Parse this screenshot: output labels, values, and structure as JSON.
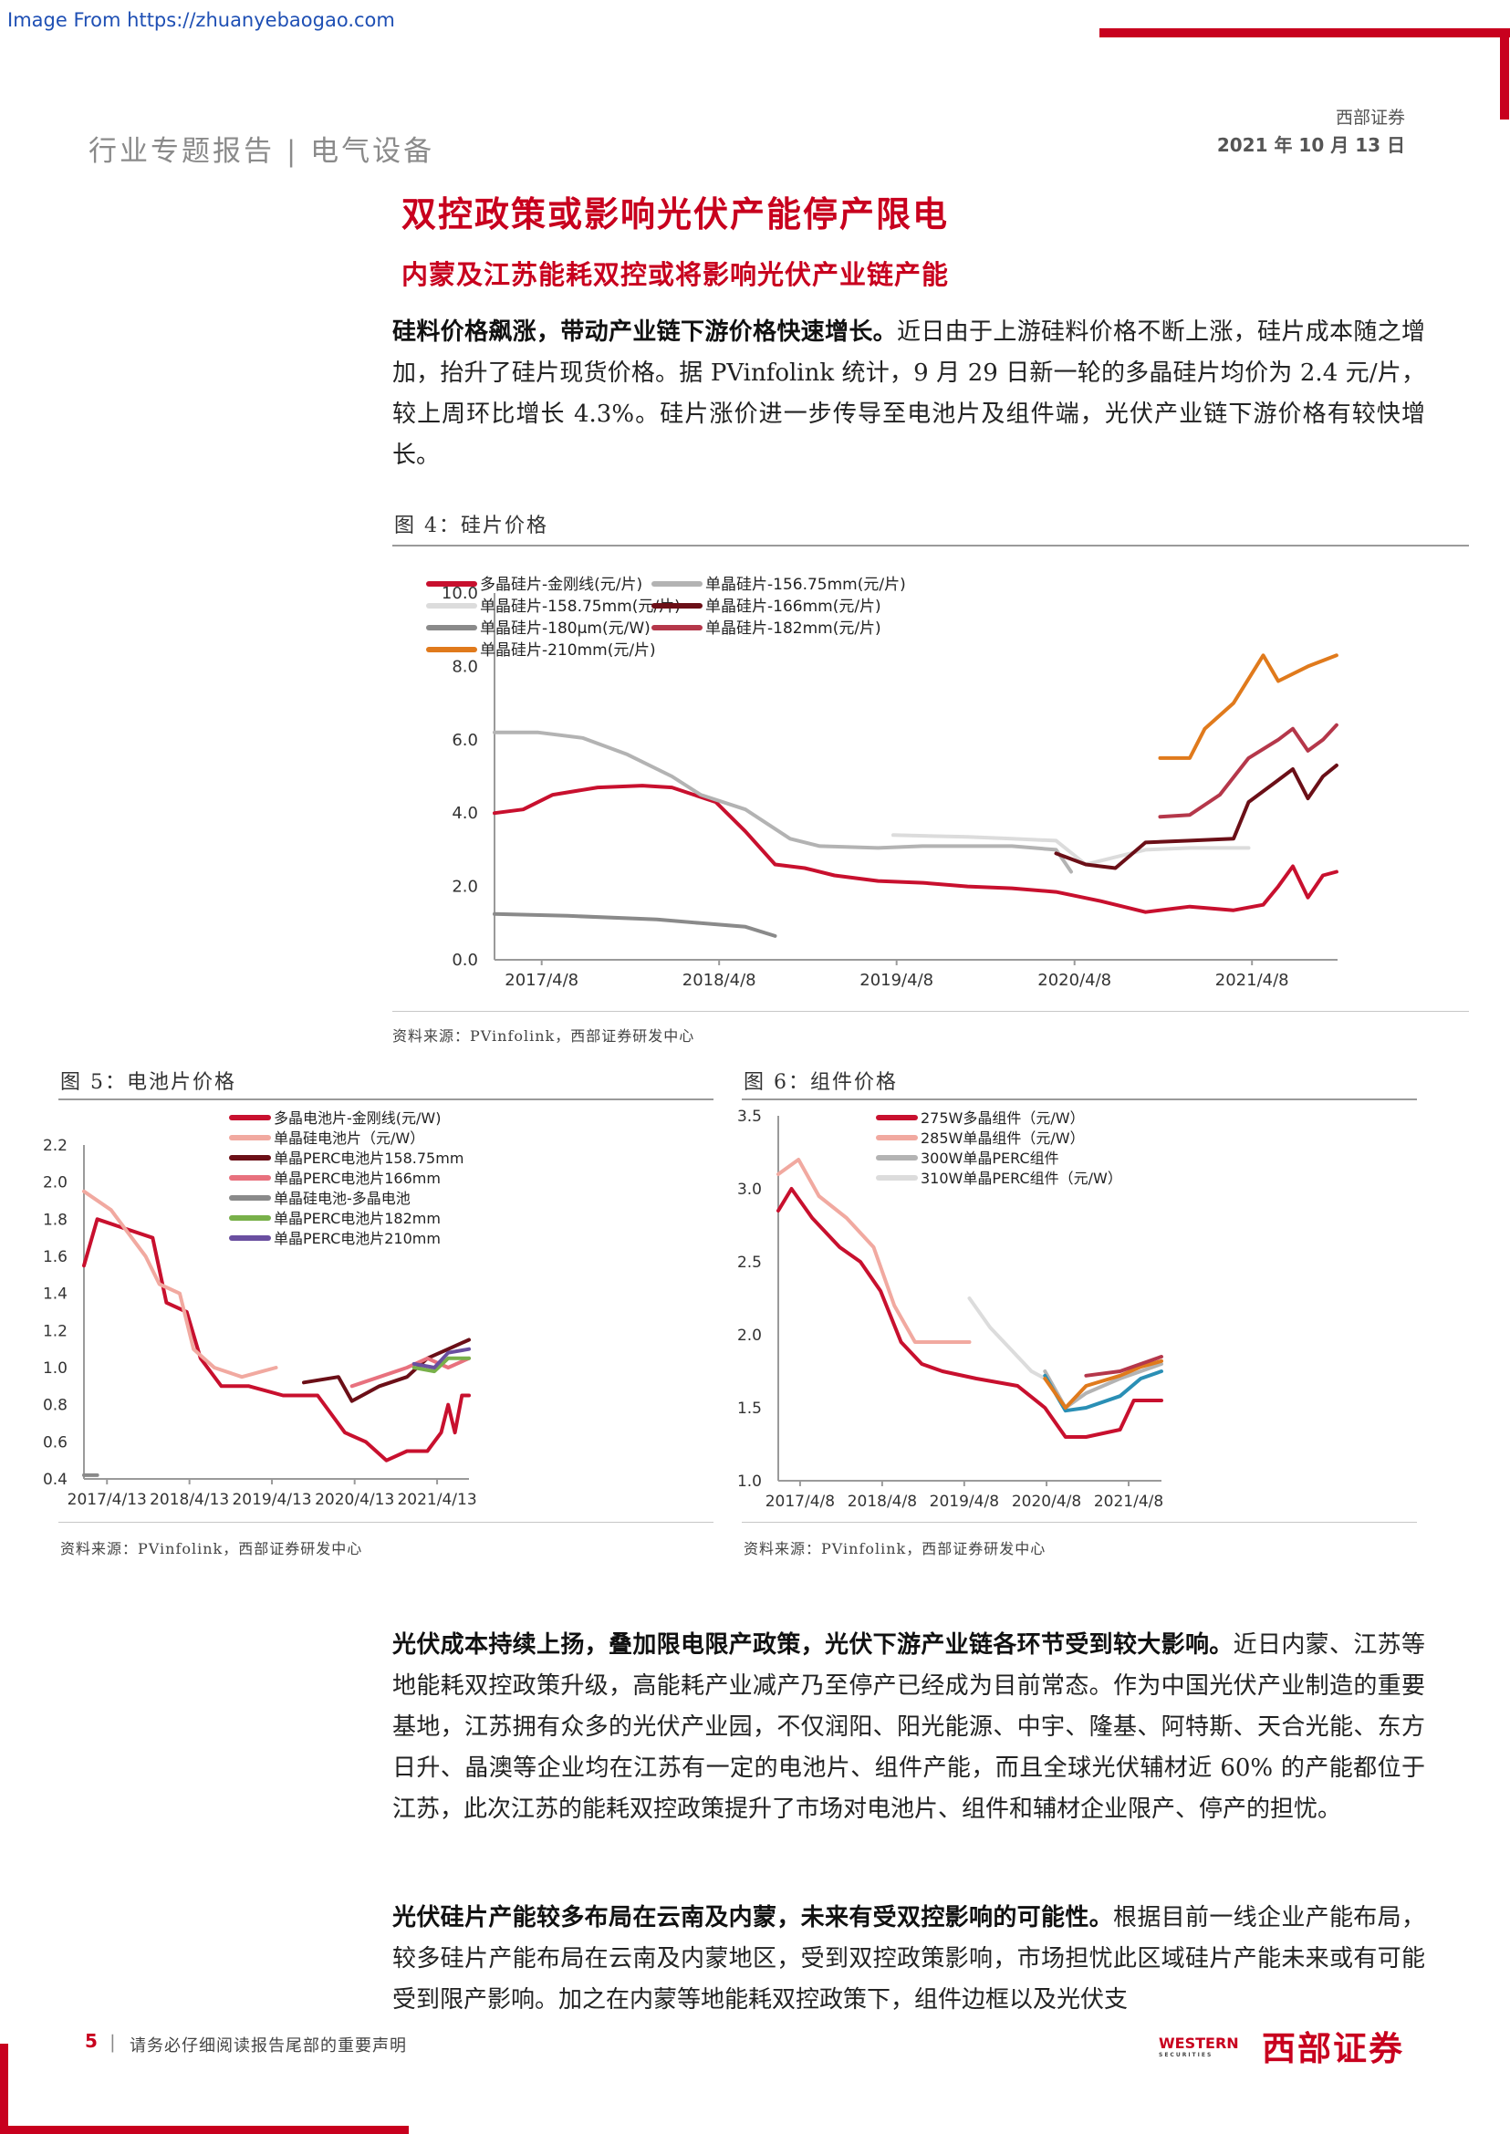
{
  "source_url": "Image From https://zhuanyebaogao.com",
  "header": {
    "title": "行业专题报告 | 电气设备",
    "company": "西部证券",
    "date": "2021 年 10 月 13 日"
  },
  "main_title": "双控政策或影响光伏产能停产限电",
  "sub_title": "内蒙及江苏能耗双控或将影响光伏产业链产能",
  "paragraph1": {
    "bold": "硅料价格飙涨，带动产业链下游价格快速增长。",
    "text": "近日由于上游硅料价格不断上涨，硅片成本随之增加，抬升了硅片现货价格。据 PVinfolink 统计，9 月 29 日新一轮的多晶硅片均价为 2.4 元/片，较上周环比增长 4.3%。硅片涨价进一步传导至电池片及组件端，光伏产业链下游价格有较快增长。"
  },
  "fig4": {
    "caption": "图 4：硅片价格",
    "source": "资料来源：PVinfolink，西部证券研发中心"
  },
  "fig5": {
    "caption": "图 5：电池片价格",
    "source": "资料来源：PVinfolink，西部证券研发中心"
  },
  "fig6": {
    "caption": "图 6：组件价格",
    "source": "资料来源：PVinfolink，西部证券研发中心"
  },
  "paragraph2": {
    "bold": "光伏成本持续上扬，叠加限电限产政策，光伏下游产业链各环节受到较大影响。",
    "text": "近日内蒙、江苏等地能耗双控政策升级，高能耗产业减产乃至停产已经成为目前常态。作为中国光伏产业制造的重要基地，江苏拥有众多的光伏产业园，不仅润阳、阳光能源、中宇、隆基、阿特斯、天合光能、东方日升、晶澳等企业均在江苏有一定的电池片、组件产能，而且全球光伏辅材近 60% 的产能都位于江苏，此次江苏的能耗双控政策提升了市场对电池片、组件和辅材企业限产、停产的担忧。"
  },
  "paragraph3": {
    "bold": "光伏硅片产能较多布局在云南及内蒙，未来有受双控影响的可能性。",
    "text": "根据目前一线企业产能布局，较多硅片产能布局在云南及内蒙地区，受到双控政策影响，市场担忧此区域硅片产能未来或有可能受到限产影响。加之在内蒙等地能耗双控政策下，组件边框以及光伏支"
  },
  "footer": {
    "page": "5",
    "separator": "|",
    "note": "请务必仔细阅读报告尾部的重要声明",
    "logo_en": "WESTERN",
    "logo_en_sub": "SECURITIES",
    "logo_cn": "西部证券"
  },
  "chart_data": [
    {
      "id": "fig4",
      "type": "line",
      "title": "图 4：硅片价格",
      "x_range": [
        "2017/1/1",
        "2021/10/1"
      ],
      "x_ticks": [
        "2017/4/8",
        "2018/4/8",
        "2019/4/8",
        "2020/4/8",
        "2021/4/8"
      ],
      "ylim": [
        0,
        10
      ],
      "y_ticks": [
        "0.0",
        "2.0",
        "4.0",
        "6.0",
        "8.0",
        "10.0"
      ],
      "grid": false,
      "legend": "top",
      "series": [
        {
          "name": "多晶硅片-金刚线(元/片)",
          "color": "#c8102e",
          "width": 4,
          "points": [
            [
              "2017/1/1",
              4.0
            ],
            [
              "2017/3/1",
              4.1
            ],
            [
              "2017/5/1",
              4.5
            ],
            [
              "2017/8/1",
              4.7
            ],
            [
              "2017/11/1",
              4.75
            ],
            [
              "2018/1/1",
              4.7
            ],
            [
              "2018/4/1",
              4.3
            ],
            [
              "2018/6/1",
              3.5
            ],
            [
              "2018/8/1",
              2.6
            ],
            [
              "2018/10/1",
              2.5
            ],
            [
              "2018/12/1",
              2.3
            ],
            [
              "2019/3/1",
              2.15
            ],
            [
              "2019/6/1",
              2.1
            ],
            [
              "2019/9/1",
              2.0
            ],
            [
              "2019/12/1",
              1.95
            ],
            [
              "2020/3/1",
              1.85
            ],
            [
              "2020/6/1",
              1.6
            ],
            [
              "2020/9/1",
              1.3
            ],
            [
              "2020/12/1",
              1.45
            ],
            [
              "2021/3/1",
              1.35
            ],
            [
              "2021/5/1",
              1.5
            ],
            [
              "2021/6/1",
              2.0
            ],
            [
              "2021/7/1",
              2.55
            ],
            [
              "2021/8/1",
              1.7
            ],
            [
              "2021/9/1",
              2.3
            ],
            [
              "2021/9/29",
              2.4
            ]
          ]
        },
        {
          "name": "单晶硅片-156.75mm(元/片)",
          "color": "#b3b3b3",
          "width": 4,
          "points": [
            [
              "2017/1/1",
              6.2
            ],
            [
              "2017/4/1",
              6.2
            ],
            [
              "2017/7/1",
              6.05
            ],
            [
              "2017/10/1",
              5.6
            ],
            [
              "2018/1/1",
              5.0
            ],
            [
              "2018/3/1",
              4.5
            ],
            [
              "2018/6/1",
              4.1
            ],
            [
              "2018/9/1",
              3.3
            ],
            [
              "2018/11/1",
              3.1
            ],
            [
              "2019/3/1",
              3.05
            ],
            [
              "2019/6/1",
              3.1
            ],
            [
              "2019/9/1",
              3.1
            ],
            [
              "2019/12/1",
              3.1
            ],
            [
              "2020/3/1",
              3.0
            ],
            [
              "2020/4/1",
              2.4
            ]
          ]
        },
        {
          "name": "单晶硅片-158.75mm(元/片)",
          "color": "#dcdcdc",
          "width": 4,
          "points": [
            [
              "2019/4/1",
              3.4
            ],
            [
              "2019/9/1",
              3.35
            ],
            [
              "2019/12/1",
              3.3
            ],
            [
              "2020/3/1",
              3.25
            ],
            [
              "2020/5/1",
              2.6
            ],
            [
              "2020/7/1",
              2.8
            ],
            [
              "2020/9/1",
              3.0
            ],
            [
              "2020/12/1",
              3.05
            ],
            [
              "2021/4/1",
              3.05
            ]
          ]
        },
        {
          "name": "单晶硅片-166mm(元/片)",
          "color": "#6b0f17",
          "width": 4,
          "points": [
            [
              "2020/3/1",
              2.9
            ],
            [
              "2020/5/1",
              2.6
            ],
            [
              "2020/7/1",
              2.5
            ],
            [
              "2020/9/1",
              3.2
            ],
            [
              "2020/12/1",
              3.25
            ],
            [
              "2021/3/1",
              3.3
            ],
            [
              "2021/4/1",
              4.3
            ],
            [
              "2021/6/1",
              4.9
            ],
            [
              "2021/7/1",
              5.2
            ],
            [
              "2021/8/1",
              4.4
            ],
            [
              "2021/9/1",
              5.0
            ],
            [
              "2021/9/29",
              5.3
            ]
          ]
        },
        {
          "name": "单晶硅片-180μm(元/W)",
          "color": "#8a8a8a",
          "width": 4,
          "points": [
            [
              "2017/1/1",
              1.25
            ],
            [
              "2017/6/1",
              1.2
            ],
            [
              "2017/12/1",
              1.1
            ],
            [
              "2018/3/1",
              1.0
            ],
            [
              "2018/6/1",
              0.9
            ],
            [
              "2018/8/1",
              0.65
            ]
          ]
        },
        {
          "name": "单晶硅片-182mm(元/片)",
          "color": "#b5374a",
          "width": 4,
          "points": [
            [
              "2020/10/1",
              3.9
            ],
            [
              "2020/12/1",
              3.95
            ],
            [
              "2021/2/1",
              4.5
            ],
            [
              "2021/4/1",
              5.5
            ],
            [
              "2021/6/1",
              6.0
            ],
            [
              "2021/7/1",
              6.3
            ],
            [
              "2021/8/1",
              5.7
            ],
            [
              "2021/9/1",
              6.0
            ],
            [
              "2021/9/29",
              6.4
            ]
          ]
        },
        {
          "name": "单晶硅片-210mm(元/片)",
          "color": "#e07a1c",
          "width": 4,
          "points": [
            [
              "2020/10/1",
              5.5
            ],
            [
              "2020/12/1",
              5.5
            ],
            [
              "2021/1/1",
              6.3
            ],
            [
              "2021/3/1",
              7.0
            ],
            [
              "2021/5/1",
              8.3
            ],
            [
              "2021/6/1",
              7.6
            ],
            [
              "2021/8/1",
              8.0
            ],
            [
              "2021/9/29",
              8.3
            ]
          ]
        }
      ]
    },
    {
      "id": "fig5",
      "type": "line",
      "title": "图 5：电池片价格",
      "x_range": [
        "2017/1/1",
        "2021/9/1"
      ],
      "x_ticks": [
        "2017/4/13",
        "2018/4/13",
        "2019/4/13",
        "2020/4/13",
        "2021/4/13"
      ],
      "ylim": [
        0.4,
        2.2
      ],
      "y_ticks": [
        "0.4",
        "0.6",
        "0.8",
        "1.0",
        "1.2",
        "1.4",
        "1.6",
        "1.8",
        "2.0",
        "2.2"
      ],
      "grid": false,
      "legend": "top",
      "series": [
        {
          "name": "多晶电池片-金刚线(元/W)",
          "color": "#c8102e",
          "width": 4,
          "points": [
            [
              "2017/1/1",
              1.55
            ],
            [
              "2017/3/1",
              1.8
            ],
            [
              "2017/7/1",
              1.75
            ],
            [
              "2017/11/1",
              1.7
            ],
            [
              "2018/1/1",
              1.35
            ],
            [
              "2018/4/1",
              1.3
            ],
            [
              "2018/6/1",
              1.05
            ],
            [
              "2018/9/1",
              0.9
            ],
            [
              "2019/1/1",
              0.9
            ],
            [
              "2019/6/1",
              0.85
            ],
            [
              "2019/11/1",
              0.85
            ],
            [
              "2020/3/1",
              0.65
            ],
            [
              "2020/6/1",
              0.6
            ],
            [
              "2020/9/1",
              0.5
            ],
            [
              "2020/12/1",
              0.55
            ],
            [
              "2021/3/1",
              0.55
            ],
            [
              "2021/5/1",
              0.65
            ],
            [
              "2021/6/1",
              0.8
            ],
            [
              "2021/7/1",
              0.65
            ],
            [
              "2021/8/1",
              0.85
            ],
            [
              "2021/9/1",
              0.85
            ]
          ]
        },
        {
          "name": "单晶硅电池片（元/W）",
          "color": "#f1a9a0",
          "width": 4,
          "points": [
            [
              "2017/1/1",
              1.95
            ],
            [
              "2017/5/1",
              1.85
            ],
            [
              "2017/10/1",
              1.6
            ],
            [
              "2017/12/1",
              1.45
            ],
            [
              "2018/3/1",
              1.4
            ],
            [
              "2018/5/1",
              1.1
            ],
            [
              "2018/8/1",
              1.0
            ],
            [
              "2018/12/1",
              0.95
            ],
            [
              "2019/3/1",
              0.98
            ],
            [
              "2019/5/1",
              1.0
            ]
          ]
        },
        {
          "name": "单晶PERC电池片158.75mm",
          "color": "#6b0f17",
          "width": 4,
          "points": [
            [
              "2019/9/1",
              0.92
            ],
            [
              "2020/2/1",
              0.95
            ],
            [
              "2020/4/1",
              0.82
            ],
            [
              "2020/8/1",
              0.9
            ],
            [
              "2020/12/1",
              0.95
            ],
            [
              "2021/3/1",
              1.05
            ],
            [
              "2021/6/1",
              1.1
            ],
            [
              "2021/9/1",
              1.15
            ]
          ]
        },
        {
          "name": "单晶PERC电池片166mm",
          "color": "#e8717e",
          "width": 4,
          "points": [
            [
              "2020/4/1",
              0.9
            ],
            [
              "2020/8/1",
              0.95
            ],
            [
              "2020/12/1",
              1.0
            ],
            [
              "2021/3/1",
              1.05
            ],
            [
              "2021/6/1",
              1.0
            ],
            [
              "2021/9/1",
              1.05
            ]
          ]
        },
        {
          "name": "单晶硅电池-多晶电池",
          "color": "#8a8a8a",
          "width": 4,
          "points": [
            [
              "2017/1/1",
              0.42
            ],
            [
              "2017/3/1",
              0.42
            ]
          ]
        },
        {
          "name": "单晶PERC电池片182mm",
          "color": "#78b04a",
          "width": 4,
          "points": [
            [
              "2021/1/1",
              1.0
            ],
            [
              "2021/4/1",
              0.98
            ],
            [
              "2021/6/1",
              1.05
            ],
            [
              "2021/9/1",
              1.05
            ]
          ]
        },
        {
          "name": "单晶PERC电池片210mm",
          "color": "#6a4fa0",
          "width": 4,
          "points": [
            [
              "2021/1/1",
              1.02
            ],
            [
              "2021/4/1",
              1.0
            ],
            [
              "2021/6/1",
              1.08
            ],
            [
              "2021/9/1",
              1.1
            ]
          ]
        }
      ]
    },
    {
      "id": "fig6",
      "type": "line",
      "title": "图 6：组件价格",
      "x_range": [
        "2017/1/1",
        "2021/9/1"
      ],
      "x_ticks": [
        "2017/4/8",
        "2018/4/8",
        "2019/4/8",
        "2020/4/8",
        "2021/4/8"
      ],
      "ylim": [
        1.0,
        3.5
      ],
      "y_ticks": [
        "1.0",
        "1.5",
        "2.0",
        "2.5",
        "3.0",
        "3.5"
      ],
      "grid": false,
      "legend": "top",
      "series": [
        {
          "name": "275W多晶组件（元/W）",
          "color": "#c8102e",
          "width": 4,
          "points": [
            [
              "2017/1/1",
              2.85
            ],
            [
              "2017/3/1",
              3.0
            ],
            [
              "2017/6/1",
              2.8
            ],
            [
              "2017/10/1",
              2.6
            ],
            [
              "2018/1/1",
              2.5
            ],
            [
              "2018/4/1",
              2.3
            ],
            [
              "2018/7/1",
              1.95
            ],
            [
              "2018/10/1",
              1.8
            ],
            [
              "2019/1/1",
              1.75
            ],
            [
              "2019/6/1",
              1.7
            ],
            [
              "2019/12/1",
              1.65
            ],
            [
              "2020/4/1",
              1.5
            ],
            [
              "2020/7/1",
              1.3
            ],
            [
              "2020/10/1",
              1.3
            ],
            [
              "2021/3/1",
              1.35
            ],
            [
              "2021/5/1",
              1.55
            ],
            [
              "2021/9/1",
              1.55
            ]
          ]
        },
        {
          "name": "285W单晶组件（元/W）",
          "color": "#f1a9a0",
          "width": 4,
          "points": [
            [
              "2017/1/1",
              3.1
            ],
            [
              "2017/4/1",
              3.2
            ],
            [
              "2017/7/1",
              2.95
            ],
            [
              "2017/11/1",
              2.8
            ],
            [
              "2018/3/1",
              2.6
            ],
            [
              "2018/6/1",
              2.2
            ],
            [
              "2018/9/1",
              1.95
            ],
            [
              "2019/3/1",
              1.95
            ],
            [
              "2019/5/1",
              1.95
            ]
          ]
        },
        {
          "name": "300W单晶PERC组件",
          "color": "#b3b3b3",
          "width": 4,
          "points": [
            [
              "2020/4/1",
              1.75
            ],
            [
              "2020/7/1",
              1.5
            ],
            [
              "2020/10/1",
              1.6
            ],
            [
              "2021/3/1",
              1.7
            ],
            [
              "2021/9/1",
              1.8
            ]
          ]
        },
        {
          "name": "310W单晶PERC组件（元/W）",
          "color": "#dcdcdc",
          "width": 4,
          "points": [
            [
              "2019/5/1",
              2.25
            ],
            [
              "2019/8/1",
              2.05
            ],
            [
              "2019/11/1",
              1.9
            ],
            [
              "2020/2/1",
              1.75
            ],
            [
              "2020/4/1",
              1.7
            ]
          ]
        },
        {
          "color": "#2a8fb5",
          "width": 4,
          "points": [
            [
              "2020/4/1",
              1.72
            ],
            [
              "2020/7/1",
              1.48
            ],
            [
              "2020/10/1",
              1.5
            ],
            [
              "2021/3/1",
              1.58
            ],
            [
              "2021/6/1",
              1.7
            ],
            [
              "2021/9/1",
              1.75
            ]
          ]
        },
        {
          "color": "#e07a1c",
          "width": 4,
          "points": [
            [
              "2020/4/1",
              1.7
            ],
            [
              "2020/7/1",
              1.5
            ],
            [
              "2020/10/1",
              1.65
            ],
            [
              "2021/3/1",
              1.72
            ],
            [
              "2021/6/1",
              1.78
            ],
            [
              "2021/9/1",
              1.82
            ]
          ]
        },
        {
          "color": "#b5374a",
          "width": 4,
          "points": [
            [
              "2020/10/1",
              1.72
            ],
            [
              "2021/3/1",
              1.75
            ],
            [
              "2021/6/1",
              1.8
            ],
            [
              "2021/9/1",
              1.85
            ]
          ]
        }
      ]
    }
  ]
}
